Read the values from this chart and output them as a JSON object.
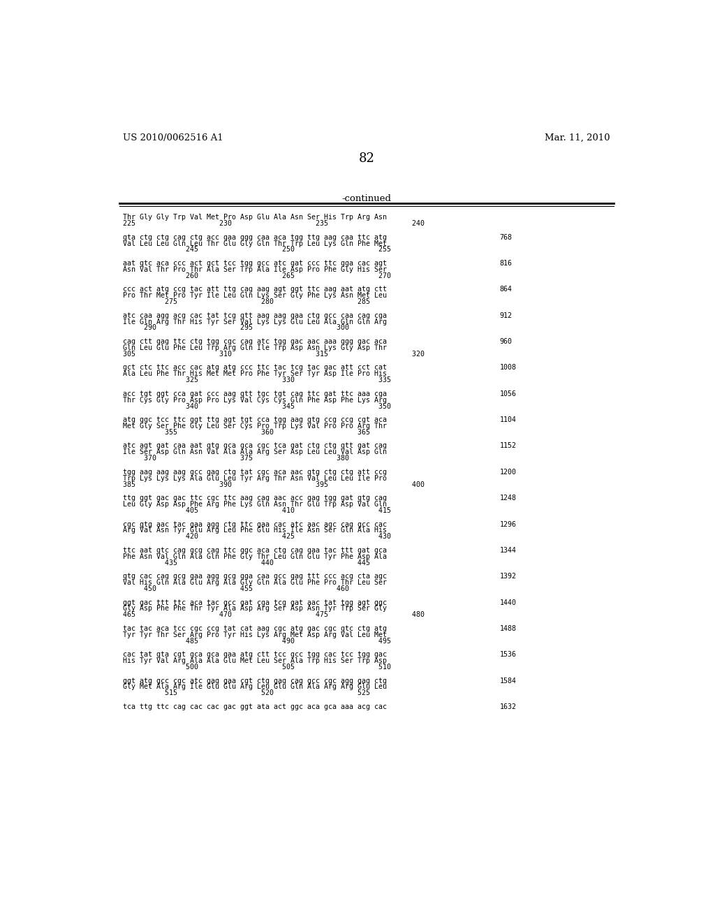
{
  "header_left": "US 2010/0062516 A1",
  "header_right": "Mar. 11, 2010",
  "page_number": "82",
  "continued_label": "-continued",
  "background_color": "#ffffff",
  "text_color": "#000000",
  "mono_font_size": 7.2,
  "header_font_size": 9.5,
  "page_num_font_size": 13,
  "content_blocks": [
    {
      "type": "header_block",
      "seq_line": "Thr Gly Gly Trp Val Met Pro Asp Glu Ala Asn Ser His Trp Arg Asn",
      "num_line": "225                    230                    235                    240"
    },
    {
      "type": "full_block",
      "dna_line": "gta ctg ctg cag ctg acc gaa ggg caa aca tgg ttg aag caa ttc atg",
      "aa_line": "Val Leu Leu Gln Leu Thr Glu Gly Gln Thr Trp Leu Lys Gln Phe Met",
      "num_line": "               245                    250                    255",
      "num_right": "768"
    },
    {
      "type": "full_block",
      "dna_line": "aat gtc aca ccc act gct tcc tgg gcc atc gat ccc ttc gga cac agt",
      "aa_line": "Asn Val Thr Pro Thr Ala Ser Trp Ala Ile Asp Pro Phe Gly His Ser",
      "num_line": "               260                    265                    270",
      "num_right": "816"
    },
    {
      "type": "full_block",
      "dna_line": "ccc act atg ccg tac att ttg cag aag agt ggt ttc aag aat atg ctt",
      "aa_line": "Pro Thr Met Pro Tyr Ile Leu Gln Lys Ser Gly Phe Lys Asn Met Leu",
      "num_line": "          275                    280                    285",
      "num_right": "864"
    },
    {
      "type": "full_block",
      "dna_line": "atc caa agg acg cac tat tcg gtt aag aag gaa ctg gcc caa cag cga",
      "aa_line": "Ile Gln Arg Thr His Tyr Ser Val Lys Lys Glu Leu Ala Gln Gln Arg",
      "num_line": "     290                    295                    300",
      "num_right": "912"
    },
    {
      "type": "full_block",
      "dna_line": "cag ctt gag ttc ctg tgg cgc cag atc tgg gac aac aaa ggg gac aca",
      "aa_line": "Gln Leu Glu Phe Leu Trp Arg Gln Ile Trp Asp Asn Lys Gly Asp Thr",
      "num_line": "305                    310                    315                    320",
      "num_right": "960"
    },
    {
      "type": "full_block",
      "dna_line": "gct ctc ttc acc cac atg atg ccc ttc tac tcg tac gac att cct cat",
      "aa_line": "Ala Leu Phe Thr His Met Met Pro Phe Tyr Ser Tyr Asp Ile Pro His",
      "num_line": "               325                    330                    335",
      "num_right": "1008"
    },
    {
      "type": "full_block",
      "dna_line": "acc tgt ggt cca gat ccc aag gtt tgc tgt cag ttc gat ttc aaa cga",
      "aa_line": "Thr Cys Gly Pro Asp Pro Lys Val Cys Cys Gln Phe Asp Phe Lys Arg",
      "num_line": "               340                    345                    350",
      "num_right": "1056"
    },
    {
      "type": "full_block",
      "dna_line": "atg ggc tcc ttc ggt ttg agt tgt cca tgg aag gtg ccg ccg cgt aca",
      "aa_line": "Met Gly Ser Phe Gly Leu Ser Cys Pro Trp Lys Val Pro Pro Arg Thr",
      "num_line": "          355                    360                    365",
      "num_right": "1104"
    },
    {
      "type": "full_block",
      "dna_line": "atc agt gat caa aat gtg gca gca cgc tca gat ctg ctg gtt gat cag",
      "aa_line": "Ile Ser Asp Gln Asn Val Ala Ala Arg Ser Asp Leu Leu Val Asp Gln",
      "num_line": "     370                    375                    380",
      "num_right": "1152"
    },
    {
      "type": "full_block",
      "dna_line": "tgg aag aag aag gcc gag ctg tat cgc aca aac gtg ctg ctg att ccg",
      "aa_line": "Trp Lys Lys Lys Ala Glu Leu Tyr Arg Thr Asn Val Leu Leu Ile Pro",
      "num_line": "385                    390                    395                    400",
      "num_right": "1200"
    },
    {
      "type": "full_block",
      "dna_line": "ttg ggt gac gac ttc cgc ttc aag cag aac acc gag tgg gat gtg cag",
      "aa_line": "Leu Gly Asp Asp Phe Arg Phe Lys Gln Asn Thr Glu Trp Asp Val Gln",
      "num_line": "               405                    410                    415",
      "num_right": "1248"
    },
    {
      "type": "full_block",
      "dna_line": "cgc gtg aac tac gaa agg ctg ttc gaa cac atc aac agc cag gcc cac",
      "aa_line": "Arg Val Asn Tyr Glu Arg Leu Phe Glu His Ile Asn Ser Gln Ala His",
      "num_line": "               420                    425                    430",
      "num_right": "1296"
    },
    {
      "type": "full_block",
      "dna_line": "ttc aat gtc cag gcg cag ttc ggc aca ctg cag gaa tac ttt gat gca",
      "aa_line": "Phe Asn Val Gln Ala Gln Phe Gly Thr Leu Gln Glu Tyr Phe Asp Ala",
      "num_line": "          435                    440                    445",
      "num_right": "1344"
    },
    {
      "type": "full_block",
      "dna_line": "gtg cac cag gcg gaa agg gcg gga caa gcc gag ttt ccc acg cta agc",
      "aa_line": "Val His Gln Ala Glu Arg Ala Gly Gln Ala Glu Phe Pro Thr Leu Ser",
      "num_line": "     450                    455                    460",
      "num_right": "1392"
    },
    {
      "type": "full_block",
      "dna_line": "ggt gac ttt ttc aca tac gcc gat cga tcg gat aac tat tgg agt ggc",
      "aa_line": "Gly Asp Phe Phe Thr Tyr Ala Asp Arg Ser Asp Asn Tyr Trp Ser Gly",
      "num_line": "465                    470                    475                    480",
      "num_right": "1440"
    },
    {
      "type": "full_block",
      "dna_line": "tac tac aca tcc cgc ccg tat cat aag cgc atg gac cgc gtc ctg atg",
      "aa_line": "Tyr Tyr Thr Ser Arg Pro Tyr His Lys Arg Met Asp Arg Val Leu Met",
      "num_line": "               485                    490                    495",
      "num_right": "1488"
    },
    {
      "type": "full_block",
      "dna_line": "cac tat gta cgt gca gca gaa atg ctt tcc gcc tgg cac tcc tgg gac",
      "aa_line": "His Tyr Val Arg Ala Ala Glu Met Leu Ser Ala Trp His Ser Trp Asp",
      "num_line": "               500                    505                    510",
      "num_right": "1536"
    },
    {
      "type": "full_block",
      "dna_line": "ggt atg gcc cgc atc gag gaa cgt ctg gag cag gcc cgc agg gag ctg",
      "aa_line": "Gly Met Ala Arg Ile Glu Glu Arg Leu Glu Gln Ala Arg Arg Glu Leu",
      "num_line": "          515                    520                    525",
      "num_right": "1584"
    },
    {
      "type": "dna_only",
      "dna_line": "tca ttg ttc cag cac cac gac ggt ata act ggc aca gca aaa acg cac",
      "num_right": "1632"
    }
  ]
}
